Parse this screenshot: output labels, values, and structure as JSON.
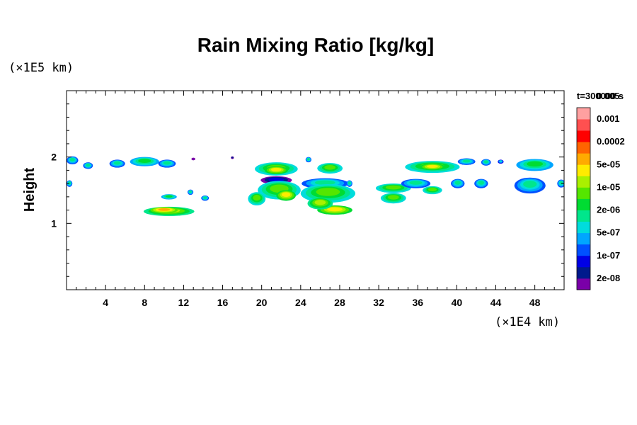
{
  "chart_data": {
    "type": "heatmap",
    "title": "Rain Mixing Ratio [kg/kg]",
    "ylabel": "Height",
    "y_unit": "(×1E5 km)",
    "x_unit": "(×1E4 km)",
    "time_label": "t=300000 s",
    "xlim": [
      0,
      51
    ],
    "ylim": [
      0,
      3
    ],
    "x_ticks": [
      {
        "value": 4,
        "label": "4"
      },
      {
        "value": 8,
        "label": "8"
      },
      {
        "value": 12,
        "label": "12"
      },
      {
        "value": 16,
        "label": "16"
      },
      {
        "value": 20,
        "label": "20"
      },
      {
        "value": 24,
        "label": "24"
      },
      {
        "value": 28,
        "label": "28"
      },
      {
        "value": 32,
        "label": "32"
      },
      {
        "value": 36,
        "label": "36"
      },
      {
        "value": 40,
        "label": "40"
      },
      {
        "value": 44,
        "label": "44"
      },
      {
        "value": 48,
        "label": "48"
      }
    ],
    "y_ticks": [
      {
        "value": 1,
        "label": "1"
      },
      {
        "value": 2,
        "label": "2"
      }
    ],
    "colorbar": {
      "colors": [
        "#7a00a8",
        "#001a8c",
        "#0000e6",
        "#0050ff",
        "#00a6ff",
        "#00dcdc",
        "#00e68c",
        "#00dc32",
        "#55e600",
        "#aaf000",
        "#ffeb00",
        "#ffaa00",
        "#ff6400",
        "#ff0000",
        "#ff5050",
        "#ffa0a0"
      ],
      "labels": [
        "2e-08",
        "1e-07",
        "5e-07",
        "2e-06",
        "1e-05",
        "5e-05",
        "0.0002",
        "0.001",
        "0.005"
      ]
    },
    "cells": [
      {
        "x": 0.6,
        "y": 1.95,
        "rx": 0.6,
        "ry": 0.06,
        "level": 6
      },
      {
        "x": 2.2,
        "y": 1.87,
        "rx": 0.5,
        "ry": 0.05,
        "level": 6
      },
      {
        "x": 5.2,
        "y": 1.9,
        "rx": 0.8,
        "ry": 0.06,
        "level": 6
      },
      {
        "x": 8.0,
        "y": 1.93,
        "rx": 1.5,
        "ry": 0.07,
        "level": 7
      },
      {
        "x": 10.3,
        "y": 1.9,
        "rx": 0.9,
        "ry": 0.06,
        "level": 6
      },
      {
        "x": 0.3,
        "y": 1.6,
        "rx": 0.3,
        "ry": 0.05,
        "level": 6
      },
      {
        "x": 10.5,
        "y": 1.18,
        "rx": 2.6,
        "ry": 0.07,
        "level": 9
      },
      {
        "x": 10.0,
        "y": 1.2,
        "rx": 1.4,
        "ry": 0.045,
        "level": 11
      },
      {
        "x": 10.5,
        "y": 1.4,
        "rx": 0.8,
        "ry": 0.04,
        "level": 7
      },
      {
        "x": 14.2,
        "y": 1.38,
        "rx": 0.4,
        "ry": 0.04,
        "level": 6
      },
      {
        "x": 12.7,
        "y": 1.47,
        "rx": 0.3,
        "ry": 0.04,
        "level": 6
      },
      {
        "x": 21.5,
        "y": 1.82,
        "rx": 2.2,
        "ry": 0.1,
        "level": 8
      },
      {
        "x": 21.5,
        "y": 1.8,
        "rx": 1.2,
        "ry": 0.06,
        "level": 10
      },
      {
        "x": 24.8,
        "y": 1.96,
        "rx": 0.3,
        "ry": 0.04,
        "level": 6
      },
      {
        "x": 27.0,
        "y": 1.83,
        "rx": 1.3,
        "ry": 0.08,
        "level": 8
      },
      {
        "x": 21.5,
        "y": 1.65,
        "rx": 1.6,
        "ry": 0.06,
        "level": 2
      },
      {
        "x": 21.8,
        "y": 1.5,
        "rx": 2.2,
        "ry": 0.14,
        "level": 8
      },
      {
        "x": 22.5,
        "y": 1.42,
        "rx": 1.0,
        "ry": 0.08,
        "level": 10
      },
      {
        "x": 19.5,
        "y": 1.37,
        "rx": 0.9,
        "ry": 0.1,
        "level": 8
      },
      {
        "x": 26.5,
        "y": 1.6,
        "rx": 2.4,
        "ry": 0.08,
        "level": 6
      },
      {
        "x": 26.8,
        "y": 1.45,
        "rx": 2.8,
        "ry": 0.14,
        "level": 8
      },
      {
        "x": 27.5,
        "y": 1.2,
        "rx": 1.8,
        "ry": 0.07,
        "level": 10
      },
      {
        "x": 26.0,
        "y": 1.3,
        "rx": 1.3,
        "ry": 0.09,
        "level": 9
      },
      {
        "x": 29.0,
        "y": 1.6,
        "rx": 0.3,
        "ry": 0.05,
        "level": 6
      },
      {
        "x": 33.5,
        "y": 1.53,
        "rx": 1.8,
        "ry": 0.07,
        "level": 8
      },
      {
        "x": 33.5,
        "y": 1.38,
        "rx": 1.3,
        "ry": 0.08,
        "level": 8
      },
      {
        "x": 35.8,
        "y": 1.6,
        "rx": 1.5,
        "ry": 0.07,
        "level": 6
      },
      {
        "x": 37.5,
        "y": 1.5,
        "rx": 1.0,
        "ry": 0.06,
        "level": 8
      },
      {
        "x": 37.5,
        "y": 1.85,
        "rx": 2.8,
        "ry": 0.09,
        "level": 8
      },
      {
        "x": 37.5,
        "y": 1.85,
        "rx": 1.3,
        "ry": 0.05,
        "level": 10
      },
      {
        "x": 41.0,
        "y": 1.93,
        "rx": 0.9,
        "ry": 0.05,
        "level": 6
      },
      {
        "x": 43.0,
        "y": 1.92,
        "rx": 0.5,
        "ry": 0.05,
        "level": 6
      },
      {
        "x": 40.1,
        "y": 1.6,
        "rx": 0.7,
        "ry": 0.07,
        "level": 6
      },
      {
        "x": 42.5,
        "y": 1.6,
        "rx": 0.7,
        "ry": 0.07,
        "level": 6
      },
      {
        "x": 44.5,
        "y": 1.93,
        "rx": 0.3,
        "ry": 0.03,
        "level": 5
      },
      {
        "x": 48.0,
        "y": 1.88,
        "rx": 1.9,
        "ry": 0.09,
        "level": 7
      },
      {
        "x": 47.5,
        "y": 1.57,
        "rx": 1.6,
        "ry": 0.12,
        "level": 6
      },
      {
        "x": 50.7,
        "y": 1.6,
        "rx": 0.4,
        "ry": 0.06,
        "level": 6
      },
      {
        "x": 17.0,
        "y": 1.99,
        "rx": 0.15,
        "ry": 0.02,
        "level": 1
      },
      {
        "x": 13.0,
        "y": 1.97,
        "rx": 0.2,
        "ry": 0.02,
        "level": 0
      }
    ]
  }
}
